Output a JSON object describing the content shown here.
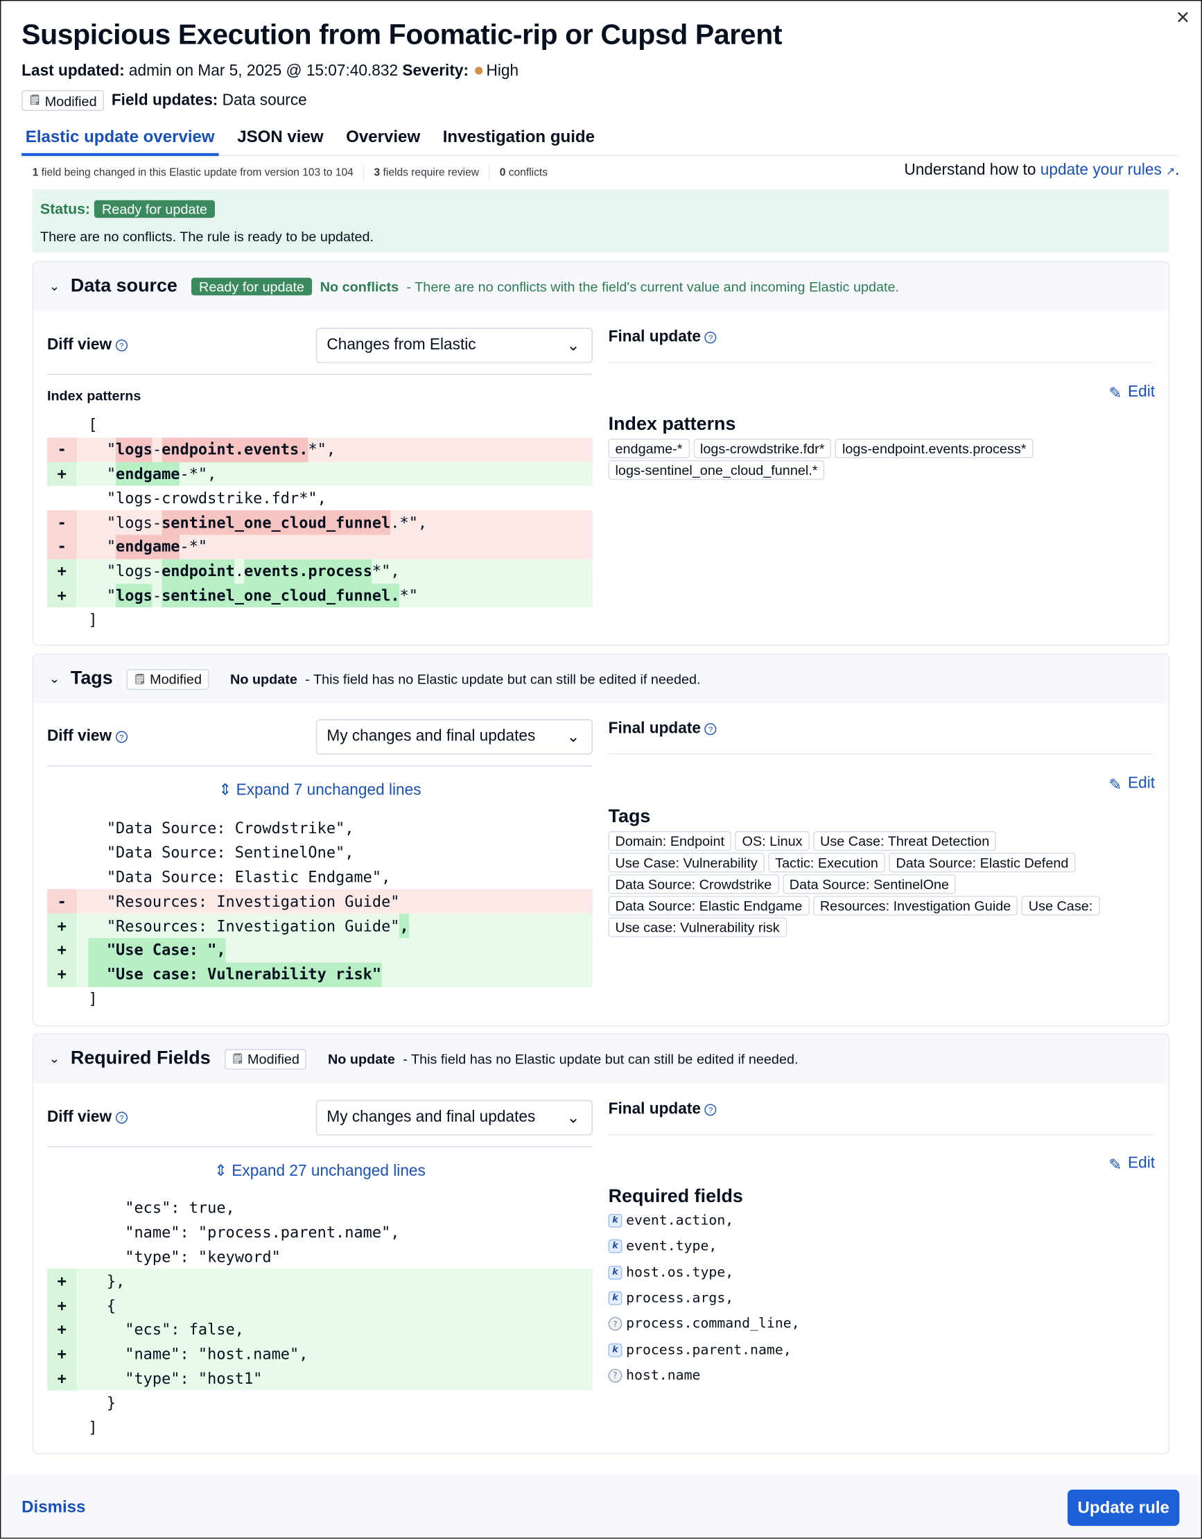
{
  "header": {
    "title": "Suspicious Execution from Foomatic-rip or Cupsd Parent",
    "last_updated_label": "Last updated:",
    "last_updated_value": "admin on Mar 5, 2025 @ 15:07:40.832",
    "severity_label": "Severity:",
    "severity_value": "High",
    "severity_color": "#d6914b",
    "modified_badge": "Modified",
    "field_updates_label": "Field updates:",
    "field_updates_value": "Data source"
  },
  "tabs": [
    {
      "label": "Elastic update overview",
      "active": true
    },
    {
      "label": "JSON view"
    },
    {
      "label": "Overview"
    },
    {
      "label": "Investigation guide"
    }
  ],
  "stats": {
    "changed_count": "1",
    "changed_text": "field being changed in this Elastic update from version 103 to 104",
    "review_count": "3",
    "review_text": "fields require review",
    "conflicts_count": "0",
    "conflicts_text": "conflicts"
  },
  "learn": {
    "prefix": "Understand how to",
    "link": "update your rules",
    "suffix": "."
  },
  "status": {
    "label": "Status:",
    "badge": "Ready for update",
    "message": "There are no conflicts. The rule is ready to be updated."
  },
  "common": {
    "diff_view": "Diff view",
    "final_update": "Final update",
    "edit": "Edit"
  },
  "sections": {
    "data_source": {
      "name": "Data source",
      "badge": "Ready for update",
      "state": "No conflicts",
      "description": "- There are no conflicts with the field's current value and incoming Elastic update.",
      "diff_mode": "Changes from Elastic",
      "left_label": "Index patterns",
      "right_title": "Index patterns",
      "values": [
        "endgame-*",
        "logs-crowdstrike.fdr*",
        "logs-endpoint.events.process*",
        "logs-sentinel_one_cloud_funnel.*"
      ],
      "diff": [
        {
          "sign": "",
          "segs": [
            [
              "[",
              0
            ]
          ]
        },
        {
          "sign": "-",
          "segs": [
            [
              "  \"",
              0
            ],
            [
              "logs",
              1
            ],
            [
              "-",
              0
            ],
            [
              "endpoint.events.",
              1
            ],
            [
              "*\",",
              0
            ]
          ]
        },
        {
          "sign": "+",
          "segs": [
            [
              "  \"",
              0
            ],
            [
              "endgame",
              1
            ],
            [
              "-*\",",
              0
            ]
          ]
        },
        {
          "sign": "",
          "segs": [
            [
              "  \"logs-crowdstrike.fdr*\",",
              0
            ]
          ]
        },
        {
          "sign": "-",
          "segs": [
            [
              "  \"logs-",
              0
            ],
            [
              "sentinel_one_cloud_funnel",
              1
            ],
            [
              ".*\",",
              0
            ]
          ]
        },
        {
          "sign": "-",
          "segs": [
            [
              "  \"",
              0
            ],
            [
              "endgame",
              1
            ],
            [
              "-*\"",
              0
            ]
          ]
        },
        {
          "sign": "+",
          "segs": [
            [
              "  \"logs-",
              0
            ],
            [
              "endpoint",
              1
            ],
            [
              ".",
              0
            ],
            [
              "events.process",
              1
            ],
            [
              "*\",",
              0
            ]
          ]
        },
        {
          "sign": "+",
          "segs": [
            [
              "  \"",
              0
            ],
            [
              "logs",
              1
            ],
            [
              "-",
              0
            ],
            [
              "sentinel_one_cloud_funnel.",
              1
            ],
            [
              "*\"",
              0
            ]
          ]
        },
        {
          "sign": "",
          "segs": [
            [
              "]",
              0
            ]
          ]
        }
      ]
    },
    "tags": {
      "name": "Tags",
      "modified_badge": "Modified",
      "state": "No update",
      "description": "- This field has no Elastic update but can still be edited if needed.",
      "diff_mode": "My changes and final updates",
      "expand": "Expand 7 unchanged lines",
      "right_title": "Tags",
      "values": [
        "Domain: Endpoint",
        "OS: Linux",
        "Use Case: Threat Detection",
        "Use Case: Vulnerability",
        "Tactic: Execution",
        "Data Source: Elastic Defend",
        "Data Source: Crowdstrike",
        "Data Source: SentinelOne",
        "Data Source: Elastic Endgame",
        "Resources: Investigation Guide",
        "Use Case: ",
        "Use case: Vulnerability risk"
      ],
      "diff": [
        {
          "sign": "",
          "segs": [
            [
              "  \"Data Source: Crowdstrike\",",
              0
            ]
          ]
        },
        {
          "sign": "",
          "segs": [
            [
              "  \"Data Source: SentinelOne\",",
              0
            ]
          ]
        },
        {
          "sign": "",
          "segs": [
            [
              "  \"Data Source: Elastic Endgame\",",
              0
            ]
          ]
        },
        {
          "sign": "-",
          "segs": [
            [
              "  \"Resources: Investigation Guide\"",
              0
            ]
          ]
        },
        {
          "sign": "+",
          "segs": [
            [
              "  \"Resources: Investigation Guide\"",
              0
            ],
            [
              ",",
              1
            ]
          ]
        },
        {
          "sign": "+",
          "segs": [
            [
              "  \"Use Case: \",",
              1
            ]
          ]
        },
        {
          "sign": "+",
          "segs": [
            [
              "  \"Use case: Vulnerability risk\"",
              1
            ]
          ]
        },
        {
          "sign": "",
          "segs": [
            [
              "]",
              0
            ]
          ]
        }
      ]
    },
    "required_fields": {
      "name": "Required Fields",
      "modified_badge": "Modified",
      "state": "No update",
      "description": "- This field has no Elastic update but can still be edited if needed.",
      "diff_mode": "My changes and final updates",
      "expand": "Expand 27 unchanged lines",
      "right_title": "Required fields",
      "values": [
        {
          "name": "event.action,",
          "icon": "keyword-icon"
        },
        {
          "name": "event.type,",
          "icon": "keyword-icon"
        },
        {
          "name": "host.os.type,",
          "icon": "keyword-icon"
        },
        {
          "name": "process.args,",
          "icon": "keyword-icon"
        },
        {
          "name": "process.command_line,",
          "icon": "unknown-type-icon"
        },
        {
          "name": "process.parent.name,",
          "icon": "keyword-icon"
        },
        {
          "name": "host.name",
          "icon": "unknown-type-icon"
        }
      ],
      "diff": [
        {
          "sign": "",
          "segs": [
            [
              "    \"ecs\": true,",
              0
            ]
          ]
        },
        {
          "sign": "",
          "segs": [
            [
              "    \"name\": \"process.parent.name\",",
              0
            ]
          ]
        },
        {
          "sign": "",
          "segs": [
            [
              "    \"type\": \"keyword\"",
              0
            ]
          ]
        },
        {
          "sign": "+",
          "segs": [
            [
              "  },",
              0
            ]
          ]
        },
        {
          "sign": "+",
          "segs": [
            [
              "  {",
              0
            ]
          ]
        },
        {
          "sign": "+",
          "segs": [
            [
              "    \"ecs\": false,",
              0
            ]
          ]
        },
        {
          "sign": "+",
          "segs": [
            [
              "    \"name\": \"host.name\",",
              0
            ]
          ]
        },
        {
          "sign": "+",
          "segs": [
            [
              "    \"type\": \"host1\"",
              0
            ]
          ]
        },
        {
          "sign": "",
          "segs": [
            [
              "  }",
              0
            ]
          ]
        },
        {
          "sign": "",
          "segs": [
            [
              "]",
              0
            ]
          ]
        }
      ]
    }
  },
  "footer": {
    "dismiss": "Dismiss",
    "update": "Update rule"
  },
  "colors": {
    "accent": "#1d5fd8",
    "link": "#1750ba",
    "success": "#3b8a5e",
    "status_bg": "#e6f6ef",
    "deletion": "#fbe9e8",
    "addition": "#e8fbea"
  }
}
